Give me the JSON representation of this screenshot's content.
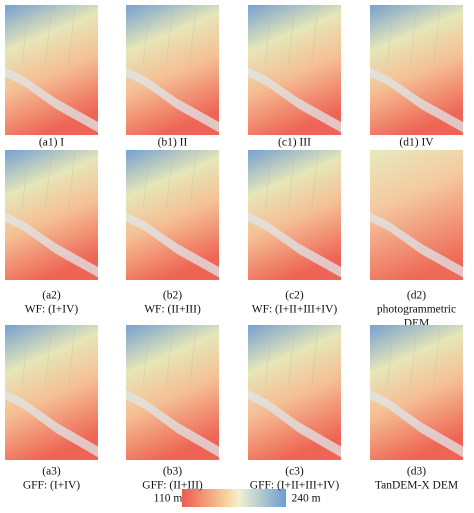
{
  "panels": [
    {
      "caption": [
        "(a1) I"
      ]
    },
    {
      "caption": [
        "(b1) II"
      ]
    },
    {
      "caption": [
        "(c1) III"
      ]
    },
    {
      "caption": [
        "(d1) IV"
      ]
    },
    {
      "caption": [
        "(a2)",
        "WF: (I+IV)"
      ]
    },
    {
      "caption": [
        "(b2)",
        "WF: (II+III)"
      ]
    },
    {
      "caption": [
        "(c2)",
        "WF: (I+II+III+IV)"
      ]
    },
    {
      "caption": [
        "(d2)",
        "photogrammetric",
        "DEM"
      ]
    },
    {
      "caption": [
        "(a3)",
        "GFF: (I+IV)"
      ]
    },
    {
      "caption": [
        "(b3)",
        "GFF: (II+III)"
      ]
    },
    {
      "caption": [
        "(c3)",
        "GFF: (I+II+III+IV)"
      ]
    },
    {
      "caption": [
        "(d3)",
        "TanDEM-X DEM"
      ]
    }
  ],
  "colorbar": {
    "min_label": "110 m",
    "max_label": "240 m"
  }
}
